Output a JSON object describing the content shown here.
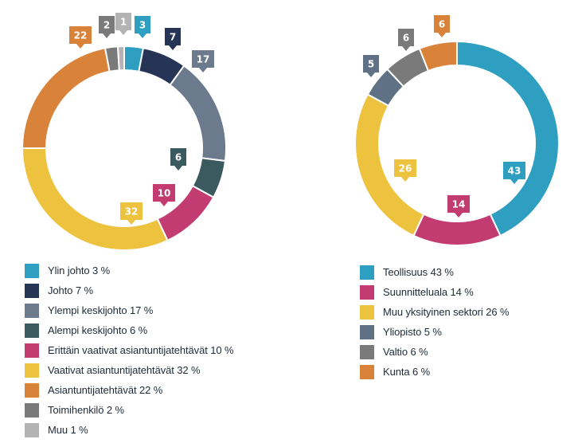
{
  "chart_data": [
    {
      "type": "pie",
      "categories": [
        "Ylin johto",
        "Johto",
        "Ylempi keskijohto",
        "Alempi keskijohto",
        "Erittäin vaativat asiantuntijatehtävät",
        "Vaativat asiantuntijatehtävät",
        "Asiantuntijatehtävät",
        "Toimihenkilö",
        "Muu"
      ],
      "values": [
        3,
        7,
        17,
        6,
        10,
        32,
        22,
        2,
        1
      ],
      "data_labels": [
        "3",
        "7",
        "17",
        "6",
        "10",
        "32",
        "22",
        "2",
        "1"
      ],
      "legend_labels": [
        "Ylin johto 3 %",
        "Johto 7 %",
        "Ylempi keskijohto 17 %",
        "Alempi keskijohto 6 %",
        "Erittäin vaativat asiantuntijatehtävät 10 %",
        "Vaativat asiantuntijatehtävät 32 %",
        "Asiantuntijatehtävät 22 %",
        "Toimihenkilö 2 %",
        "Muu 1 %"
      ],
      "colors": [
        "#2e9fc0",
        "#263556",
        "#6b7a8c",
        "#3a5a60",
        "#c23c72",
        "#ecc23f",
        "#d9823a",
        "#7a7a7a",
        "#b3b3b3"
      ],
      "donut": true,
      "legend_position": "bottom"
    },
    {
      "type": "pie",
      "categories": [
        "Teollisuus",
        "Suunnitteluala",
        "Muu yksityinen sektori",
        "Yliopisto",
        "Valtio",
        "Kunta"
      ],
      "values": [
        43,
        14,
        26,
        5,
        6,
        6
      ],
      "data_labels": [
        "43",
        "14",
        "26",
        "5",
        "6",
        "6"
      ],
      "legend_labels": [
        "Teollisuus 43 %",
        "Suunnitteluala 14 %",
        "Muu yksityinen sektori 26 %",
        "Yliopisto 5 %",
        "Valtio 6 %",
        "Kunta 6 %"
      ],
      "colors": [
        "#2e9fc0",
        "#c23c72",
        "#ecc23f",
        "#5f7185",
        "#7a7a7a",
        "#d9823a"
      ],
      "donut": true,
      "legend_position": "bottom"
    }
  ]
}
